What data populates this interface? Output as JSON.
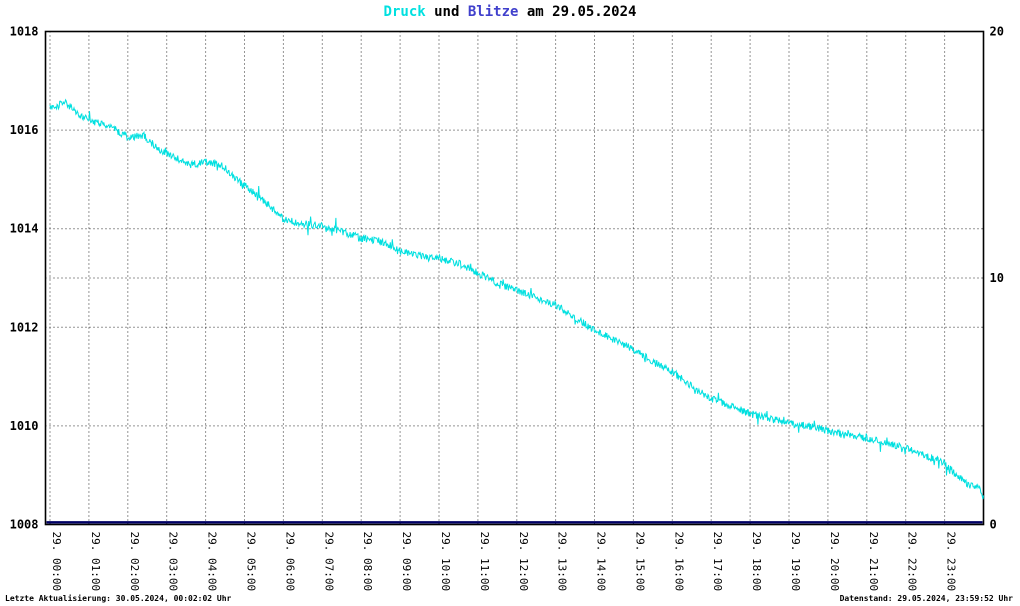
{
  "title": {
    "druck": "Druck",
    "und": " und ",
    "blitze": "Blitze",
    "rest": " am 29.05.2024"
  },
  "footer": {
    "last_update": "Letzte Aktualisierung: 30.05.2024, 00:02:02 Uhr",
    "data_state": "Datenstand: 29.05.2024, 23:59:52 Uhr"
  },
  "colors": {
    "background": "#FFFFFF",
    "druck_line": "#00E0E0",
    "blitze_line": "#000066",
    "blitze_title": "#4040CC",
    "grid": "#2B2B2B",
    "axis": "#000000"
  },
  "chart_data": {
    "type": "line",
    "title": "Druck und Blitze am 29.05.2024",
    "grid": true,
    "left_axis": {
      "min": 1008,
      "max": 1018,
      "ticks": [
        1008,
        1010,
        1012,
        1014,
        1016,
        1018
      ]
    },
    "right_axis": {
      "min": 0,
      "max": 20,
      "ticks": [
        0,
        10,
        20
      ]
    },
    "x_axis": {
      "min_hour": 0,
      "max_hour": 24,
      "tick_labels": [
        "29. 00:00",
        "29. 01:00",
        "29. 02:00",
        "29. 03:00",
        "29. 04:00",
        "29. 05:00",
        "29. 06:00",
        "29. 07:00",
        "29. 08:00",
        "29. 09:00",
        "29. 10:00",
        "29. 11:00",
        "29. 12:00",
        "29. 13:00",
        "29. 14:00",
        "29. 15:00",
        "29. 16:00",
        "29. 17:00",
        "29. 18:00",
        "29. 19:00",
        "29. 20:00",
        "29. 21:00",
        "29. 22:00",
        "29. 23:00"
      ]
    },
    "noise_amplitude": 0.15,
    "series": [
      {
        "name": "Druck",
        "axis": "left",
        "color": "#00E0E0",
        "points": [
          [
            0,
            1016.45
          ],
          [
            0.4,
            1016.55
          ],
          [
            0.8,
            1016.3
          ],
          [
            1.2,
            1016.15
          ],
          [
            1.6,
            1016.05
          ],
          [
            2,
            1015.85
          ],
          [
            2.4,
            1015.9
          ],
          [
            2.8,
            1015.6
          ],
          [
            3.2,
            1015.45
          ],
          [
            3.6,
            1015.3
          ],
          [
            4,
            1015.35
          ],
          [
            4.4,
            1015.3
          ],
          [
            4.8,
            1015.0
          ],
          [
            5.2,
            1014.75
          ],
          [
            5.6,
            1014.5
          ],
          [
            6,
            1014.2
          ],
          [
            6.5,
            1014.1
          ],
          [
            7,
            1014.05
          ],
          [
            7.5,
            1013.95
          ],
          [
            8,
            1013.8
          ],
          [
            8.5,
            1013.75
          ],
          [
            9,
            1013.55
          ],
          [
            9.5,
            1013.45
          ],
          [
            10,
            1013.4
          ],
          [
            10.5,
            1013.3
          ],
          [
            11,
            1013.1
          ],
          [
            11.5,
            1012.9
          ],
          [
            12,
            1012.75
          ],
          [
            12.5,
            1012.6
          ],
          [
            13,
            1012.45
          ],
          [
            13.5,
            1012.2
          ],
          [
            14,
            1011.95
          ],
          [
            14.5,
            1011.75
          ],
          [
            15,
            1011.55
          ],
          [
            15.5,
            1011.3
          ],
          [
            16,
            1011.1
          ],
          [
            16.5,
            1010.8
          ],
          [
            17,
            1010.55
          ],
          [
            17.5,
            1010.4
          ],
          [
            18,
            1010.25
          ],
          [
            18.5,
            1010.15
          ],
          [
            19,
            1010.05
          ],
          [
            19.5,
            1010.0
          ],
          [
            20,
            1009.9
          ],
          [
            20.5,
            1009.8
          ],
          [
            21,
            1009.75
          ],
          [
            21.5,
            1009.65
          ],
          [
            22,
            1009.55
          ],
          [
            22.5,
            1009.4
          ],
          [
            23,
            1009.25
          ],
          [
            23.3,
            1009.0
          ],
          [
            23.6,
            1008.8
          ],
          [
            23.85,
            1008.78
          ],
          [
            24,
            1008.55
          ]
        ]
      },
      {
        "name": "Blitze",
        "axis": "right",
        "color": "#000066",
        "constant_value": 0
      }
    ]
  }
}
